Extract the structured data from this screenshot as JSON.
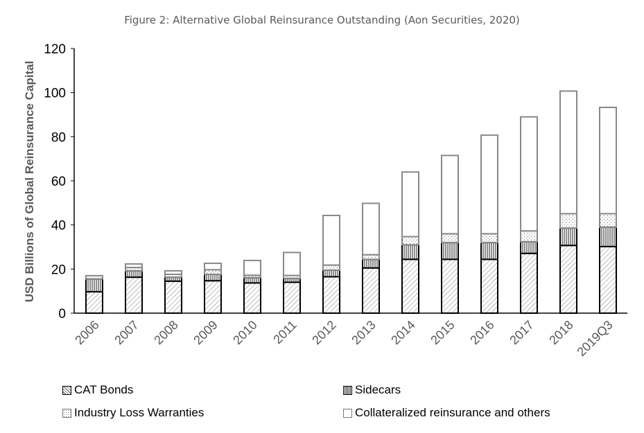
{
  "chart_data": {
    "type": "bar",
    "stacked": true,
    "title": "Figure 2: Alternative Global Reinsurance Outstanding (Aon Securities, 2020)",
    "xlabel": "",
    "ylabel": "USD Billions  of Global Reinsurance Capital",
    "ylim": [
      0,
      120
    ],
    "yticks": [
      0,
      20,
      40,
      60,
      80,
      100,
      120
    ],
    "grid": false,
    "legend_placement": "bottom",
    "categories": [
      "2006",
      "2007",
      "2008",
      "2009",
      "2010",
      "2011",
      "2012",
      "2013",
      "2014",
      "2015",
      "2016",
      "2017",
      "2018",
      "2019Q3"
    ],
    "series": [
      {
        "name": "CAT Bonds",
        "pattern": "diagonal-hatch",
        "values": [
          9.7,
          16.3,
          14.5,
          14.7,
          13.7,
          14.0,
          16.5,
          20.5,
          24.4,
          24.4,
          24.4,
          27.1,
          30.7,
          30.2
        ]
      },
      {
        "name": "Sidecars",
        "pattern": "vertical-lines",
        "values": [
          5.8,
          2.9,
          1.8,
          2.9,
          2.4,
          1.8,
          3.0,
          3.9,
          6.6,
          7.6,
          7.6,
          5.3,
          7.9,
          8.8
        ]
      },
      {
        "name": "Industry Loss Warranties",
        "pattern": "dots",
        "values": [
          1.5,
          1.5,
          1.3,
          2.1,
          1.1,
          1.3,
          2.3,
          2.1,
          3.7,
          4.0,
          4.0,
          4.9,
          6.5,
          6.1
        ]
      },
      {
        "name": "Collateralized reinsurance and others",
        "pattern": "empty",
        "values": [
          0.0,
          1.6,
          1.6,
          2.9,
          6.7,
          10.4,
          22.5,
          23.3,
          29.3,
          35.5,
          44.7,
          51.7,
          55.6,
          48.2
        ]
      }
    ]
  }
}
